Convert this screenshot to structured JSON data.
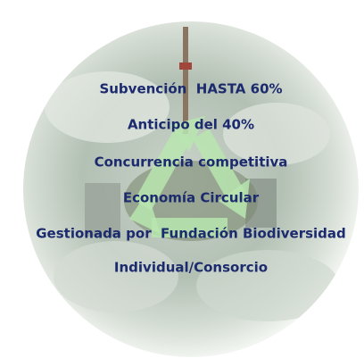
{
  "lines": [
    "Subvención  HASTA 60%",
    "Anticipo del 40%",
    "Concurrencia competitiva",
    "Economía Circular",
    "Gestionada por  Fundación Biodiversidad",
    "Individual/Consorcio"
  ]
}
